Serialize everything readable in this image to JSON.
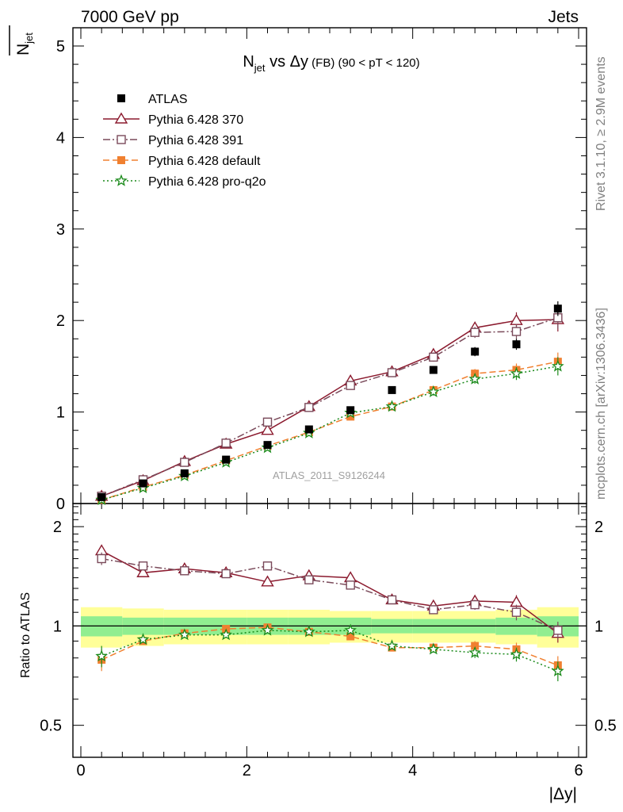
{
  "header": {
    "left": "7000 GeV pp",
    "right": "Jets",
    "side_top": "Rivet 3.1.10, ≥ 2.9M events",
    "side_bottom": "mcplots.cern.ch [arXiv:1306.3436]",
    "watermark": "ATLAS_2011_S9126244"
  },
  "chart_data": [
    {
      "type": "line",
      "panel": "main",
      "title": {
        "n": "N",
        "sub": "jet",
        "vs": " vs Δy",
        "fb": " (FB)",
        "range": " (90 < pT < 120)"
      },
      "ylabel": {
        "n": "N",
        "sub": "jet"
      },
      "ylim": [
        0,
        5.2
      ],
      "yticks": [
        0,
        1,
        2,
        3,
        4,
        5
      ],
      "ytick_labels": [
        "0",
        "1",
        "2",
        "3",
        "4",
        "5"
      ],
      "x": [
        0.25,
        0.75,
        1.25,
        1.75,
        2.25,
        2.75,
        3.25,
        3.75,
        4.25,
        4.75,
        5.25,
        5.75
      ],
      "series": [
        {
          "name": "ATLAS",
          "color": "#000000",
          "marker": "square-filled",
          "line": "none",
          "values": [
            0.07,
            0.22,
            0.33,
            0.48,
            0.64,
            0.81,
            1.02,
            1.24,
            1.46,
            1.66,
            1.74,
            2.13
          ],
          "errors": [
            0.01,
            0.01,
            0.01,
            0.01,
            0.02,
            0.02,
            0.03,
            0.03,
            0.04,
            0.05,
            0.06,
            0.08
          ]
        },
        {
          "name": "Pythia 6.428 370",
          "color": "#8b1a2e",
          "marker": "triangle-open",
          "line": "solid",
          "values": [
            0.08,
            0.25,
            0.46,
            0.65,
            0.8,
            1.06,
            1.34,
            1.44,
            1.63,
            1.92,
            2.0,
            2.01
          ],
          "errors": [
            0.01,
            0.01,
            0.02,
            0.02,
            0.03,
            0.03,
            0.04,
            0.04,
            0.05,
            0.06,
            0.09,
            0.13
          ]
        },
        {
          "name": "Pythia 6.428 391",
          "color": "#7a4a5a",
          "marker": "square-open",
          "line": "dashdot",
          "values": [
            0.08,
            0.26,
            0.45,
            0.66,
            0.89,
            1.05,
            1.29,
            1.43,
            1.6,
            1.87,
            1.88,
            2.03
          ],
          "errors": [
            0.01,
            0.01,
            0.02,
            0.02,
            0.03,
            0.03,
            0.04,
            0.04,
            0.05,
            0.06,
            0.08,
            0.12
          ]
        },
        {
          "name": "Pythia 6.428 default",
          "color": "#f08030",
          "marker": "square-filled",
          "line": "dashed",
          "values": [
            0.04,
            0.18,
            0.31,
            0.47,
            0.63,
            0.78,
            0.95,
            1.06,
            1.24,
            1.42,
            1.46,
            1.55
          ],
          "errors": [
            0.01,
            0.01,
            0.01,
            0.02,
            0.02,
            0.02,
            0.03,
            0.03,
            0.04,
            0.05,
            0.07,
            0.1
          ]
        },
        {
          "name": "Pythia 6.428 pro-q2o",
          "color": "#1a8a1a",
          "marker": "star",
          "line": "dotted",
          "values": [
            0.04,
            0.17,
            0.3,
            0.45,
            0.61,
            0.77,
            0.99,
            1.06,
            1.22,
            1.36,
            1.42,
            1.5
          ],
          "errors": [
            0.01,
            0.01,
            0.01,
            0.02,
            0.02,
            0.02,
            0.03,
            0.03,
            0.04,
            0.05,
            0.07,
            0.1
          ]
        }
      ]
    },
    {
      "type": "line",
      "panel": "ratio",
      "ylabel": "Ratio to ATLAS",
      "ylim": [
        0.4,
        2.35
      ],
      "log_y": true,
      "yticks": [
        0.5,
        1,
        2
      ],
      "ytick_labels": [
        "0.5",
        "1",
        "2"
      ],
      "xlim": [
        -0.1,
        6.1
      ],
      "xlabel": "|Δy|",
      "xticks": [
        0,
        2,
        4,
        6
      ],
      "xtick_labels": [
        "0",
        "2",
        "4",
        "6"
      ],
      "x": [
        0.25,
        0.75,
        1.25,
        1.75,
        2.25,
        2.75,
        3.25,
        3.75,
        4.25,
        4.75,
        5.25,
        5.75
      ],
      "bin_edges": [
        0,
        0.5,
        1.0,
        1.5,
        2.0,
        2.5,
        3.0,
        3.5,
        4.0,
        4.5,
        5.0,
        5.5,
        6.0
      ],
      "bands": {
        "stat_color": "#90ee90",
        "total_color": "#ffff99",
        "stat_halfwidth": [
          0.07,
          0.06,
          0.06,
          0.06,
          0.06,
          0.06,
          0.06,
          0.05,
          0.05,
          0.05,
          0.06,
          0.07
        ],
        "total_halfwidth": [
          0.14,
          0.13,
          0.12,
          0.12,
          0.12,
          0.12,
          0.11,
          0.11,
          0.11,
          0.11,
          0.12,
          0.14
        ]
      },
      "series": [
        {
          "name": "Pythia 6.428 370",
          "color": "#8b1a2e",
          "marker": "triangle-open",
          "line": "solid",
          "values": [
            1.69,
            1.45,
            1.49,
            1.45,
            1.36,
            1.42,
            1.4,
            1.2,
            1.15,
            1.19,
            1.18,
            0.95
          ],
          "errors": [
            0.06,
            0.03,
            0.03,
            0.03,
            0.03,
            0.03,
            0.03,
            0.03,
            0.03,
            0.04,
            0.06,
            0.06
          ]
        },
        {
          "name": "Pythia 6.428 391",
          "color": "#7a4a5a",
          "marker": "square-open",
          "line": "dashdot",
          "values": [
            1.6,
            1.52,
            1.47,
            1.44,
            1.52,
            1.38,
            1.33,
            1.2,
            1.12,
            1.16,
            1.1,
            0.97
          ],
          "errors": [
            0.07,
            0.03,
            0.03,
            0.03,
            0.03,
            0.03,
            0.03,
            0.03,
            0.03,
            0.04,
            0.06,
            0.06
          ]
        },
        {
          "name": "Pythia 6.428 default",
          "color": "#f08030",
          "marker": "square-filled",
          "line": "dashed",
          "values": [
            0.79,
            0.9,
            0.95,
            0.98,
            0.99,
            0.96,
            0.93,
            0.86,
            0.86,
            0.87,
            0.85,
            0.76
          ],
          "errors": [
            0.06,
            0.02,
            0.02,
            0.02,
            0.02,
            0.02,
            0.02,
            0.02,
            0.02,
            0.03,
            0.04,
            0.05
          ]
        },
        {
          "name": "Pythia 6.428 pro-q2o",
          "color": "#1a8a1a",
          "marker": "star",
          "line": "dotted",
          "values": [
            0.81,
            0.91,
            0.94,
            0.94,
            0.97,
            0.96,
            0.97,
            0.87,
            0.85,
            0.83,
            0.82,
            0.73
          ],
          "errors": [
            0.06,
            0.02,
            0.02,
            0.02,
            0.02,
            0.02,
            0.02,
            0.02,
            0.02,
            0.03,
            0.04,
            0.05
          ]
        }
      ]
    }
  ]
}
